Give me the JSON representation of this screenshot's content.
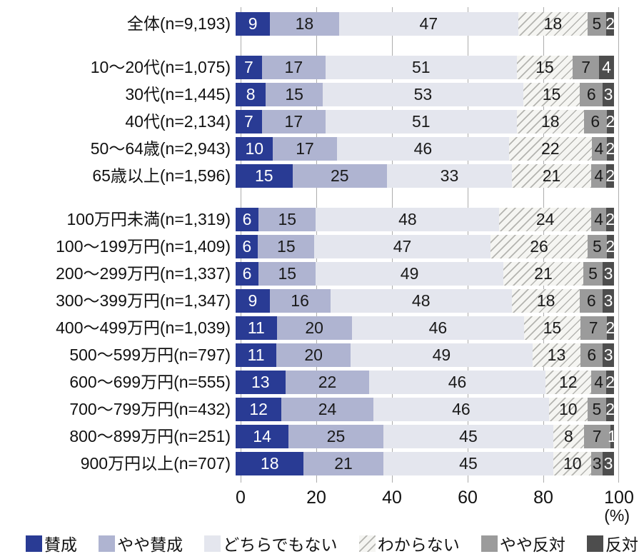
{
  "chart_data": {
    "type": "bar",
    "stacked": true,
    "orientation": "horizontal",
    "unit": "(%)",
    "x_ticks": [
      0,
      20,
      40,
      60,
      80,
      100
    ],
    "xlim": [
      0,
      100
    ],
    "grid": true,
    "legend_position": "bottom",
    "series_meta": [
      {
        "name": "賛成",
        "color": "#293b94",
        "text_color": "#ffffff",
        "hatch": false
      },
      {
        "name": "やや賛成",
        "color": "#afb4d1",
        "text_color": "#1a1a1a",
        "hatch": false
      },
      {
        "name": "どちらでもない",
        "color": "#e4e6ee",
        "text_color": "#1a1a1a",
        "hatch": false
      },
      {
        "name": "わからない",
        "color": "#f5f5f2",
        "text_color": "#1a1a1a",
        "hatch": true,
        "hatch_line_color": "#b4b4b0"
      },
      {
        "name": "やや反対",
        "color": "#9b9b9b",
        "text_color": "#1a1a1a",
        "hatch": false
      },
      {
        "name": "反対",
        "color": "#4d4d4d",
        "text_color": "#ffffff",
        "hatch": false
      }
    ],
    "grid_color": "#adadad",
    "groups": [
      {
        "rows": [
          {
            "label": "全体(n=9,193)",
            "values": [
              9,
              18,
              47,
              18,
              5,
              2
            ]
          }
        ]
      },
      {
        "rows": [
          {
            "label": "10〜20代(n=1,075)",
            "values": [
              7,
              17,
              51,
              15,
              7,
              4
            ]
          },
          {
            "label": "30代(n=1,445)",
            "values": [
              8,
              15,
              53,
              15,
              6,
              3
            ]
          },
          {
            "label": "40代(n=2,134)",
            "values": [
              7,
              17,
              51,
              18,
              6,
              2
            ]
          },
          {
            "label": "50〜64歳(n=2,943)",
            "values": [
              10,
              17,
              46,
              22,
              4,
              2
            ]
          },
          {
            "label": "65歳以上(n=1,596)",
            "values": [
              15,
              25,
              33,
              21,
              4,
              2
            ]
          }
        ]
      },
      {
        "rows": [
          {
            "label": "100万円未満(n=1,319)",
            "values": [
              6,
              15,
              48,
              24,
              4,
              2
            ]
          },
          {
            "label": "100〜199万円(n=1,409)",
            "values": [
              6,
              15,
              47,
              26,
              5,
              2
            ]
          },
          {
            "label": "200〜299万円(n=1,337)",
            "values": [
              6,
              15,
              49,
              21,
              5,
              3
            ]
          },
          {
            "label": "300〜399万円(n=1,347)",
            "values": [
              9,
              16,
              48,
              18,
              6,
              3
            ]
          },
          {
            "label": "400〜499万円(n=1,039)",
            "values": [
              11,
              20,
              46,
              15,
              7,
              2
            ]
          },
          {
            "label": "500〜599万円(n=797)",
            "values": [
              11,
              20,
              49,
              13,
              6,
              3
            ]
          },
          {
            "label": "600〜699万円(n=555)",
            "values": [
              13,
              22,
              46,
              12,
              4,
              2
            ]
          },
          {
            "label": "700〜799万円(n=432)",
            "values": [
              12,
              24,
              46,
              10,
              5,
              2
            ]
          },
          {
            "label": "800〜899万円(n=251)",
            "values": [
              14,
              25,
              45,
              8,
              7,
              1
            ]
          },
          {
            "label": "900万円以上(n=707)",
            "values": [
              18,
              21,
              45,
              10,
              3,
              3
            ]
          }
        ]
      }
    ]
  }
}
